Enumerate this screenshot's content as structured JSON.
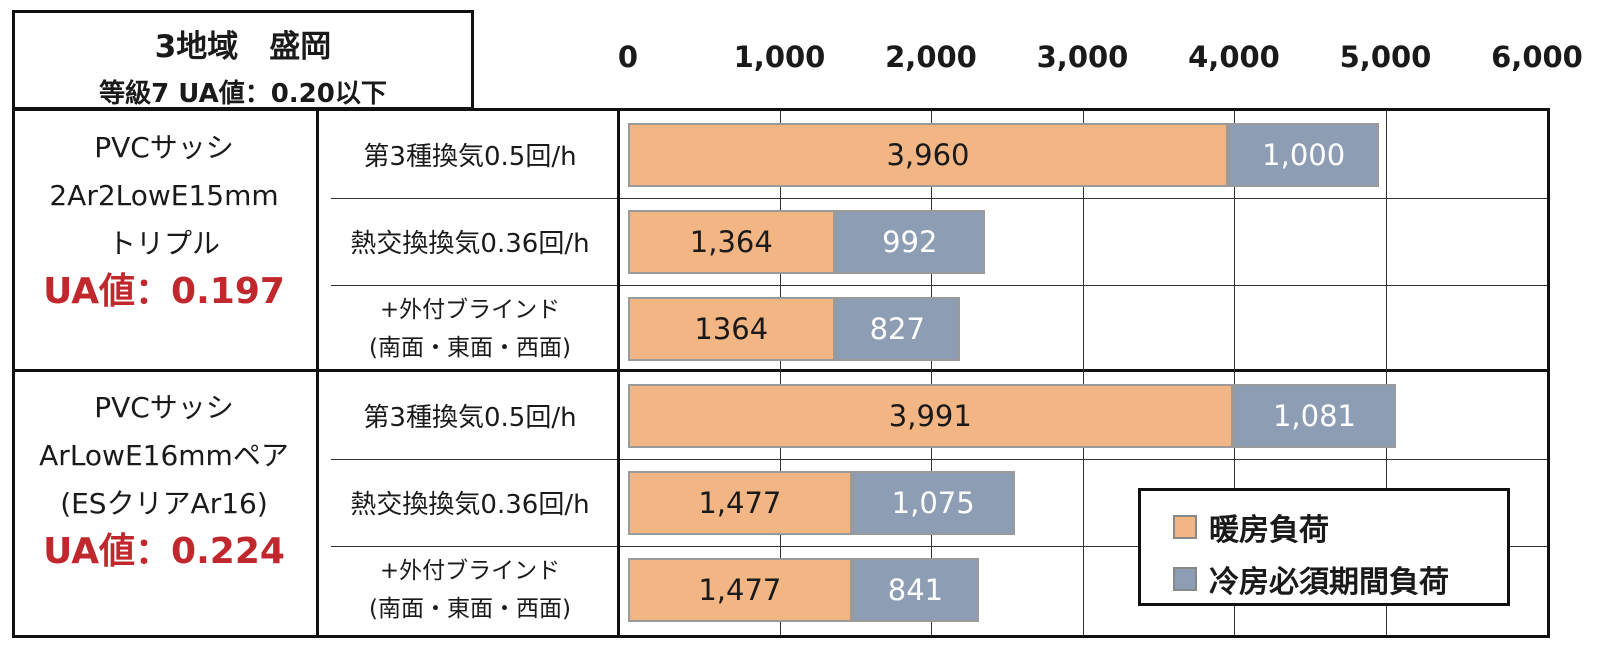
{
  "header": {
    "title": "3地域　盛岡",
    "subtitle": "等級7 UA値：0.20以下"
  },
  "colors": {
    "heating": "#f2b584",
    "cooling": "#8d9db4",
    "ua_text": "#c0282d"
  },
  "legend": {
    "heating": "暖房負荷",
    "cooling": "冷房必須期間負荷"
  },
  "groups": [
    {
      "line1": "PVCサッシ",
      "line2": "2Ar2LowE15mm",
      "line3": "トリプル",
      "ua": "UA値：0.197"
    },
    {
      "line1": "PVCサッシ",
      "line2": "ArLowE16mmペア",
      "line3": "(ESクリアAr16)",
      "ua": "UA値：0.224"
    }
  ],
  "chart_data": {
    "type": "bar",
    "orientation": "horizontal",
    "stacked": true,
    "xlim": [
      0,
      6000
    ],
    "ticks": [
      "0",
      "1,000",
      "2,000",
      "3,000",
      "4,000",
      "5,000",
      "6,000"
    ],
    "grid": true,
    "legend_position": "bottom-right",
    "rows": [
      {
        "label": "第3種換気0.5回/h",
        "label2": "",
        "heating": 3960,
        "cooling": 1000,
        "heating_label": "3,960",
        "cooling_label": "1,000"
      },
      {
        "label": "熱交換換気0.36回/h",
        "label2": "",
        "heating": 1364,
        "cooling": 992,
        "heating_label": "1,364",
        "cooling_label": "992"
      },
      {
        "label": "+外付ブラインド",
        "label2": "(南面・東面・西面)",
        "heating": 1364,
        "cooling": 827,
        "heating_label": "1364",
        "cooling_label": "827"
      },
      {
        "label": "第3種換気0.5回/h",
        "label2": "",
        "heating": 3991,
        "cooling": 1081,
        "heating_label": "3,991",
        "cooling_label": "1,081"
      },
      {
        "label": "熱交換換気0.36回/h",
        "label2": "",
        "heating": 1477,
        "cooling": 1075,
        "heating_label": "1,477",
        "cooling_label": "1,075"
      },
      {
        "label": "+外付ブラインド",
        "label2": "(南面・東面・西面)",
        "heating": 1477,
        "cooling": 841,
        "heating_label": "1,477",
        "cooling_label": "841"
      }
    ]
  }
}
